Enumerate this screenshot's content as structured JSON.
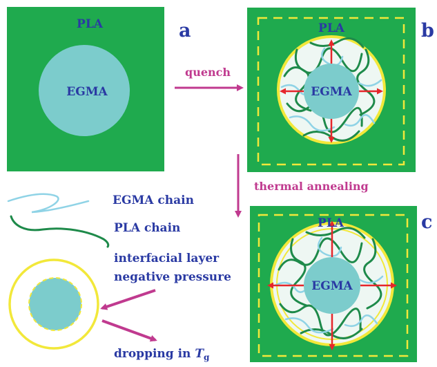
{
  "panels": {
    "a": {
      "letter": "a",
      "matrix_label": "PLA",
      "domain_label": "EGMA"
    },
    "b": {
      "letter": "b",
      "matrix_label": "PLA",
      "domain_label": "EGMA"
    },
    "c": {
      "letter": "c",
      "matrix_label": "PLA",
      "domain_label": "EGMA"
    }
  },
  "arrows": {
    "quench": "quench",
    "annealing": "thermal annealing"
  },
  "legend": {
    "egma_chain": "EGMA chain",
    "pla_chain": "PLA chain",
    "interfacial_line1": "interfacial layer",
    "interfacial_line2": "negative pressure",
    "dropping_prefix": "dropping in ",
    "tg_symbol": "T",
    "tg_subscript": "g"
  },
  "colors": {
    "matrix_green": "#1faa4e",
    "domain_blue": "#7ccccc",
    "label_navy": "#2a3aa3",
    "process_magenta": "#c03a8f",
    "interface_yellow": "#f2e83a",
    "stress_red": "#e5262b",
    "egma_chain": "#8fd3e6",
    "pla_chain": "#1e8a4a"
  },
  "icons": {
    "quench_arrow": "arrow-right-icon",
    "annealing_arrow": "arrow-down-icon",
    "stress_arrows": "red-outward-arrows-icon"
  }
}
